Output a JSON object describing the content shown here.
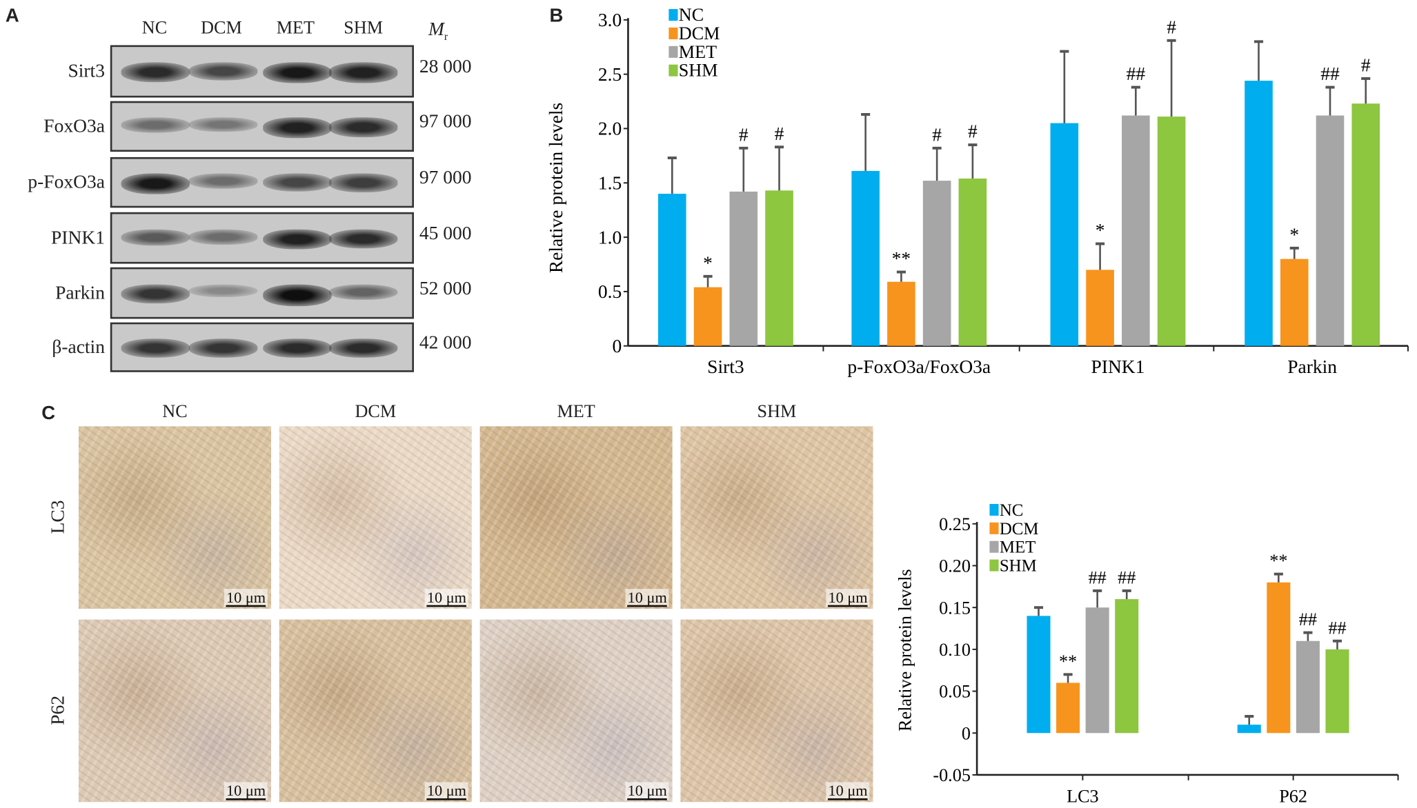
{
  "panel_a": {
    "letter": "A",
    "lanes": [
      "NC",
      "DCM",
      "MET",
      "SHM"
    ],
    "mr_label": "M",
    "mr_sub": "r",
    "rows": [
      {
        "protein": "Sirt3",
        "mr": "28 000"
      },
      {
        "protein": "FoxO3a",
        "mr": "97 000"
      },
      {
        "protein": "p-FoxO3a",
        "mr": "97 000"
      },
      {
        "protein": "PINK1",
        "mr": "45 000"
      },
      {
        "protein": "Parkin",
        "mr": "52 000"
      },
      {
        "protein": "β-actin",
        "mr": "42 000"
      }
    ]
  },
  "panel_c": {
    "letter": "C",
    "columns": [
      "NC",
      "DCM",
      "MET",
      "SHM"
    ],
    "rows": [
      "LC3",
      "P62"
    ],
    "scale_bar": "10 μm"
  },
  "colors": {
    "NC": "#00aeef",
    "DCM": "#f7941d",
    "MET": "#a6a6a6",
    "SHM": "#8dc63f"
  },
  "chart_data": [
    {
      "panel": "B",
      "type": "bar",
      "ylabel": "Relative protein levels",
      "xlabel": "",
      "ylim": [
        0,
        3.0
      ],
      "yticks": [
        "0",
        "0.5",
        "1.0",
        "1.5",
        "2.0",
        "2.5",
        "3.0"
      ],
      "legend_position": "top-left",
      "categories": [
        "Sirt3",
        "p-FoxO3a/FoxO3a",
        "PINK1",
        "Parkin"
      ],
      "series": [
        {
          "name": "NC",
          "values": [
            1.4,
            1.61,
            2.05,
            2.44
          ],
          "error": [
            0.33,
            0.52,
            0.66,
            0.36
          ],
          "marks": [
            "",
            "",
            "",
            ""
          ]
        },
        {
          "name": "DCM",
          "values": [
            0.54,
            0.59,
            0.7,
            0.8
          ],
          "error": [
            0.1,
            0.09,
            0.24,
            0.1
          ],
          "marks": [
            "*",
            "**",
            "*",
            "*"
          ]
        },
        {
          "name": "MET",
          "values": [
            1.42,
            1.52,
            2.12,
            2.12
          ],
          "error": [
            0.4,
            0.3,
            0.26,
            0.26
          ],
          "marks": [
            "#",
            "#",
            "##",
            "##"
          ]
        },
        {
          "name": "SHM",
          "values": [
            1.43,
            1.54,
            2.11,
            2.23
          ],
          "error": [
            0.4,
            0.31,
            0.7,
            0.23
          ],
          "marks": [
            "#",
            "#",
            "#",
            "#"
          ]
        }
      ]
    },
    {
      "panel": "C",
      "type": "bar",
      "ylabel": "Relative protein levels",
      "xlabel": "",
      "ylim": [
        -0.05,
        0.25
      ],
      "yticks": [
        "-0.05",
        "0",
        "0.05",
        "0.10",
        "0.15",
        "0.20",
        "0.25"
      ],
      "legend_position": "top-left",
      "categories": [
        "LC3",
        "P62"
      ],
      "series": [
        {
          "name": "NC",
          "values": [
            0.14,
            0.01
          ],
          "error": [
            0.01,
            0.01
          ],
          "marks": [
            "",
            ""
          ]
        },
        {
          "name": "DCM",
          "values": [
            0.06,
            0.18
          ],
          "error": [
            0.01,
            0.01
          ],
          "marks": [
            "**",
            "**"
          ]
        },
        {
          "name": "MET",
          "values": [
            0.15,
            0.11
          ],
          "error": [
            0.02,
            0.01
          ],
          "marks": [
            "##",
            "##"
          ]
        },
        {
          "name": "SHM",
          "values": [
            0.16,
            0.1
          ],
          "error": [
            0.01,
            0.01
          ],
          "marks": [
            "##",
            "##"
          ]
        }
      ]
    }
  ],
  "panel_b_letter": "B"
}
